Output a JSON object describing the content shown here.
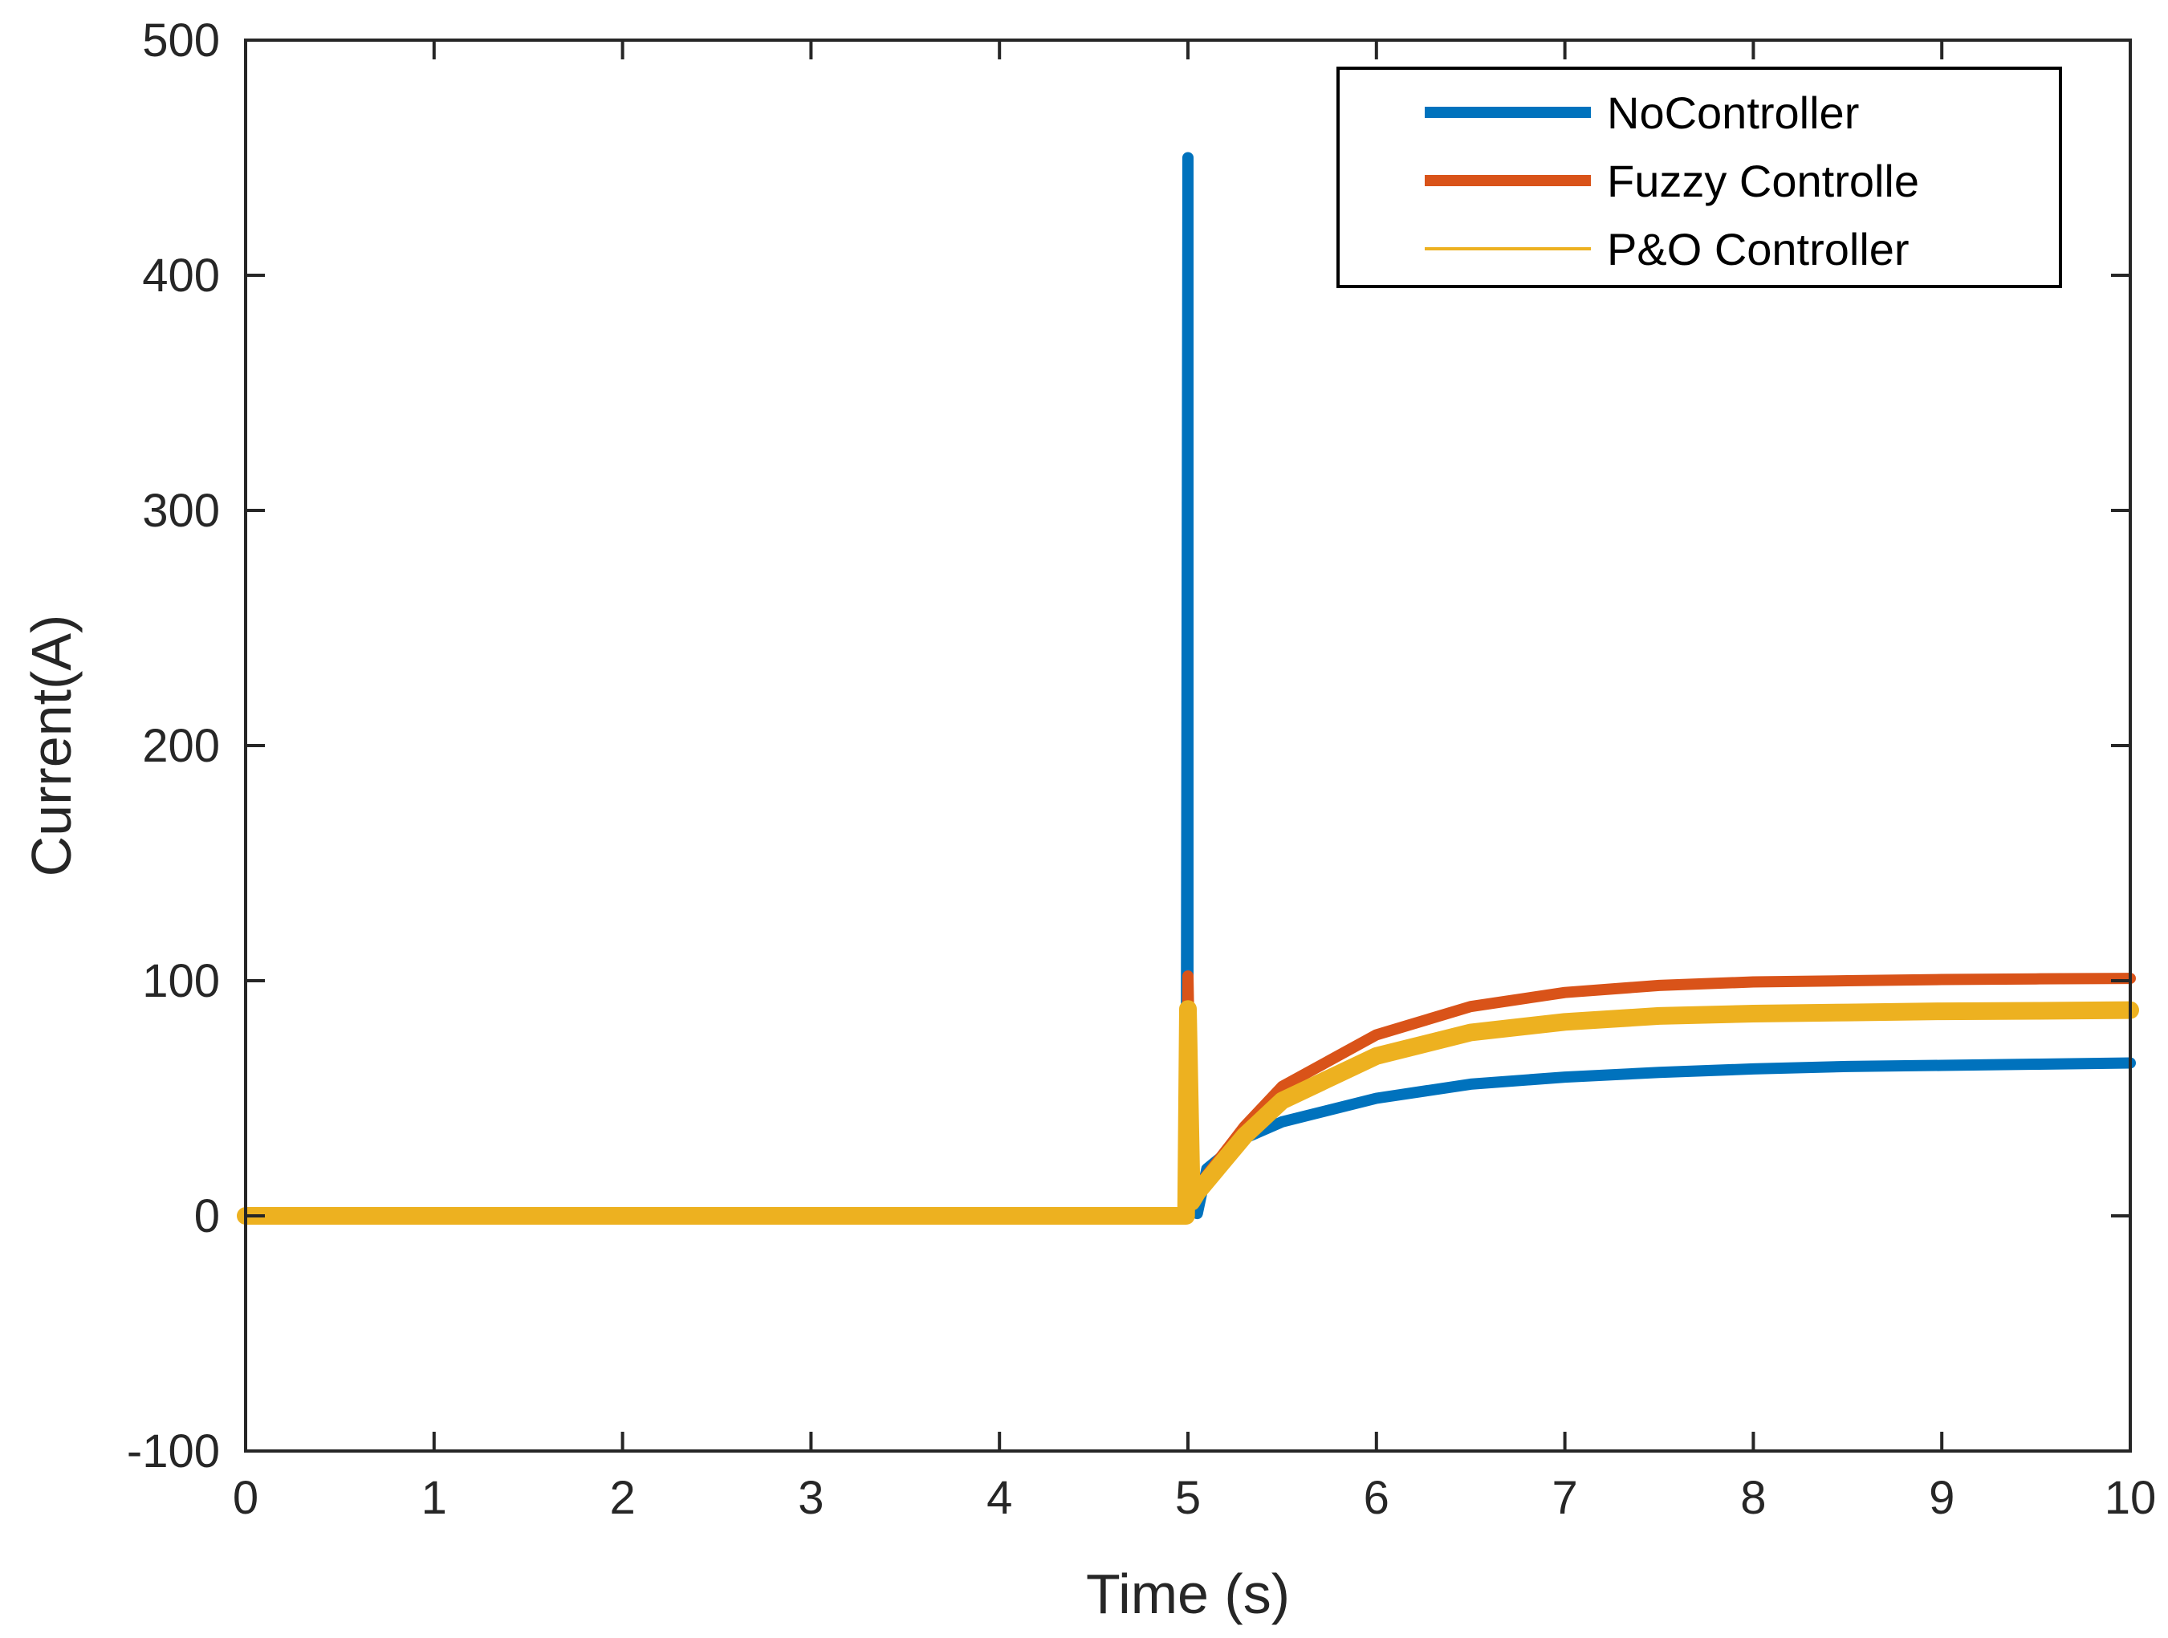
{
  "chart_data": {
    "type": "line",
    "title": "",
    "xlabel": "Time (s)",
    "ylabel": "Current(A)",
    "xlim": [
      0,
      10
    ],
    "ylim": [
      -100,
      500
    ],
    "xticks": [
      0,
      1,
      2,
      3,
      4,
      5,
      6,
      7,
      8,
      9,
      10
    ],
    "yticks": [
      -100,
      0,
      100,
      200,
      300,
      400,
      500
    ],
    "grid": false,
    "legend_position": "top-right",
    "series": [
      {
        "name": "NoController",
        "color": "#0072BD",
        "line_style": "thick",
        "x": [
          0,
          4.99,
          5.0,
          5.0,
          5.03,
          5.05,
          5.1,
          5.3,
          5.5,
          6.0,
          6.5,
          7.0,
          7.5,
          8.0,
          8.5,
          9.0,
          9.5,
          10.0
        ],
        "y": [
          0,
          0,
          450,
          0,
          20,
          1,
          20,
          33,
          40,
          50,
          56,
          59,
          61,
          62.5,
          63.5,
          64,
          64.5,
          65
        ]
      },
      {
        "name": "Fuzzy Controlle",
        "color": "#D95319",
        "line_style": "thick",
        "x": [
          0,
          4.99,
          5.0,
          5.02,
          5.05,
          5.3,
          5.5,
          6.0,
          6.5,
          7.0,
          7.5,
          8.0,
          8.5,
          9.0,
          9.5,
          10.0
        ],
        "y": [
          0,
          0,
          102,
          8,
          12,
          38,
          55,
          77,
          89,
          95,
          98,
          99.5,
          100,
          100.5,
          100.8,
          101
        ]
      },
      {
        "name": "P&O Controller",
        "color": "#EDB120",
        "line_style": "thin",
        "x": [
          0,
          4.99,
          5.0,
          5.02,
          5.05,
          5.3,
          5.5,
          6.0,
          6.5,
          7.0,
          7.5,
          8.0,
          8.5,
          9.0,
          9.5,
          10.0
        ],
        "y": [
          0,
          0,
          88,
          6,
          10,
          34,
          49,
          68,
          78,
          82.5,
          85,
          86,
          86.5,
          87,
          87.2,
          87.5
        ]
      }
    ]
  }
}
